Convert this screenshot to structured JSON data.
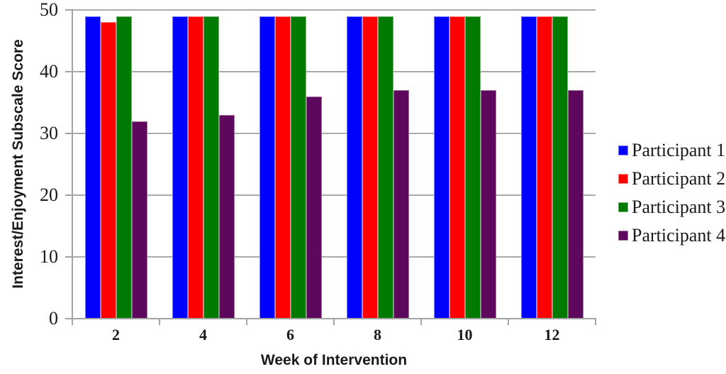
{
  "chart_data": {
    "type": "bar",
    "title": "",
    "xlabel": "Week of Intervention",
    "ylabel": "Interest/Enjoyment Subscale Score",
    "categories": [
      "2",
      "4",
      "6",
      "8",
      "10",
      "12"
    ],
    "series": [
      {
        "name": "Participant 1",
        "color": "#0000fe",
        "edge_color": "#7c7cff",
        "values": [
          49,
          49,
          49,
          49,
          49,
          49
        ]
      },
      {
        "name": "Participant 2",
        "color": "#fe0000",
        "edge_color": "#ff8585",
        "values": [
          48,
          49,
          49,
          49,
          49,
          49
        ]
      },
      {
        "name": "Participant 3",
        "color": "#007a00",
        "edge_color": "#73b473",
        "values": [
          49,
          49,
          49,
          49,
          49,
          49
        ]
      },
      {
        "name": "Participant 4",
        "color": "#5d085d",
        "edge_color": "#a172a1",
        "values": [
          32,
          33,
          36,
          37,
          37,
          37
        ]
      }
    ],
    "ylim": [
      0,
      50
    ],
    "yticks": [
      0,
      10,
      20,
      30,
      40,
      50
    ],
    "grid": "horizontal",
    "legend_position": "right"
  },
  "colors": {
    "gridline": "#ababab",
    "axis": "#a3a3a3",
    "text": "#1a1a1a",
    "background": "#ffffff"
  }
}
